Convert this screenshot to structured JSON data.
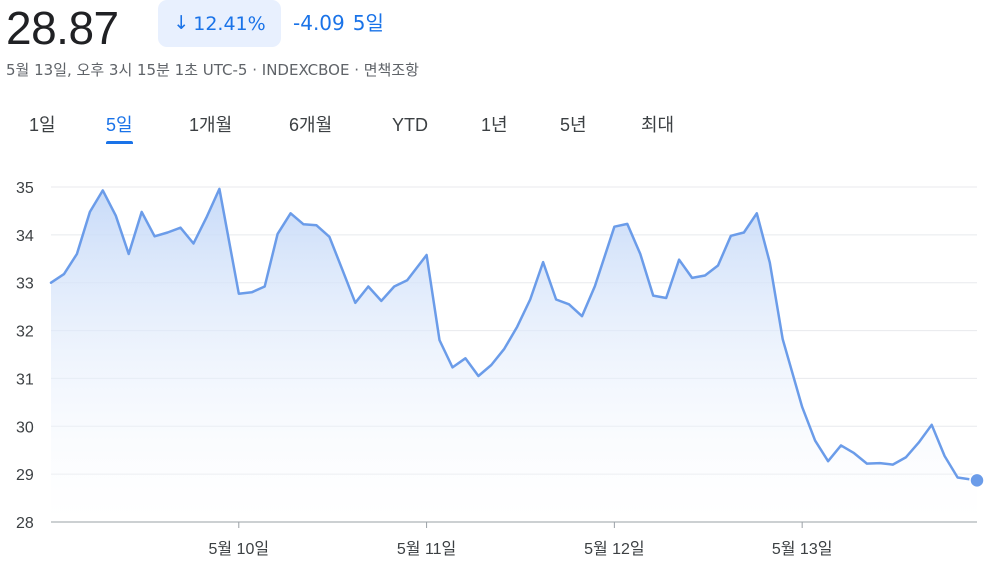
{
  "header": {
    "price": "28.87",
    "change_percent": "12.41%",
    "change_arrow_icon": "arrow-down-icon",
    "change_value": "-4.09",
    "change_period": "5일",
    "meta": "5월 13일, 오후 3시 15분 1초 UTC-5 · INDEXCBOE · 면책조항"
  },
  "tabs": [
    {
      "label": "1일",
      "active": false
    },
    {
      "label": "5일",
      "active": true
    },
    {
      "label": "1개월",
      "active": false
    },
    {
      "label": "6개월",
      "active": false
    },
    {
      "label": "YTD",
      "active": false
    },
    {
      "label": "1년",
      "active": false
    },
    {
      "label": "5년",
      "active": false
    },
    {
      "label": "최대",
      "active": false
    }
  ],
  "colors": {
    "accent": "#1a73e8",
    "line": "#6b9ce9",
    "fill_top": "#c7dbf8",
    "grid": "#e8eaed"
  },
  "chart_data": {
    "type": "area",
    "ylim": [
      28,
      35
    ],
    "y_ticks": [
      "35",
      "34",
      "33",
      "32",
      "31",
      "30",
      "29",
      "28"
    ],
    "x_ticks": [
      {
        "label": "5월 10일",
        "x": 14.5
      },
      {
        "label": "5월 11일",
        "x": 29
      },
      {
        "label": "5월 12일",
        "x": 43.5
      },
      {
        "label": "5월 13일",
        "x": 58
      }
    ],
    "x_range": [
      0,
      71.5
    ],
    "grid": true,
    "series": [
      {
        "values": [
          [
            0,
            33.0
          ],
          [
            1,
            33.18
          ],
          [
            2,
            33.6
          ],
          [
            3,
            34.48
          ],
          [
            4,
            34.93
          ],
          [
            5,
            34.4
          ],
          [
            6,
            33.6
          ],
          [
            7,
            34.48
          ],
          [
            8,
            33.97
          ],
          [
            9,
            34.05
          ],
          [
            10,
            34.15
          ],
          [
            11,
            33.82
          ],
          [
            12,
            34.36
          ],
          [
            13,
            34.96
          ],
          [
            14.5,
            32.77
          ],
          [
            15.5,
            32.8
          ],
          [
            16.5,
            32.92
          ],
          [
            17.5,
            34.02
          ],
          [
            18.5,
            34.45
          ],
          [
            19.5,
            34.22
          ],
          [
            20.5,
            34.2
          ],
          [
            21.5,
            33.96
          ],
          [
            22.5,
            33.27
          ],
          [
            23.5,
            32.58
          ],
          [
            24.5,
            32.92
          ],
          [
            25.5,
            32.62
          ],
          [
            26.5,
            32.92
          ],
          [
            27.5,
            33.05
          ],
          [
            29,
            33.58
          ],
          [
            30,
            31.8
          ],
          [
            31,
            31.23
          ],
          [
            32,
            31.42
          ],
          [
            33,
            31.05
          ],
          [
            34,
            31.28
          ],
          [
            35,
            31.62
          ],
          [
            36,
            32.08
          ],
          [
            37,
            32.65
          ],
          [
            38,
            33.43
          ],
          [
            39,
            32.65
          ],
          [
            40,
            32.55
          ],
          [
            41,
            32.3
          ],
          [
            42,
            32.93
          ],
          [
            43.5,
            34.17
          ],
          [
            44.5,
            34.23
          ],
          [
            45.5,
            33.6
          ],
          [
            46.5,
            32.73
          ],
          [
            47.5,
            32.68
          ],
          [
            48.5,
            33.48
          ],
          [
            49.5,
            33.1
          ],
          [
            50.5,
            33.15
          ],
          [
            51.5,
            33.36
          ],
          [
            52.5,
            33.98
          ],
          [
            53.5,
            34.05
          ],
          [
            54.5,
            34.45
          ],
          [
            55.5,
            33.42
          ],
          [
            56.5,
            31.82
          ],
          [
            58,
            30.4
          ],
          [
            59,
            29.7
          ],
          [
            60,
            29.27
          ],
          [
            61,
            29.6
          ],
          [
            62,
            29.44
          ],
          [
            63,
            29.22
          ],
          [
            64,
            29.23
          ],
          [
            65,
            29.2
          ],
          [
            66,
            29.35
          ],
          [
            67,
            29.66
          ],
          [
            68,
            30.03
          ],
          [
            69,
            29.38
          ],
          [
            70,
            28.93
          ],
          [
            71.5,
            28.87
          ]
        ]
      }
    ]
  }
}
